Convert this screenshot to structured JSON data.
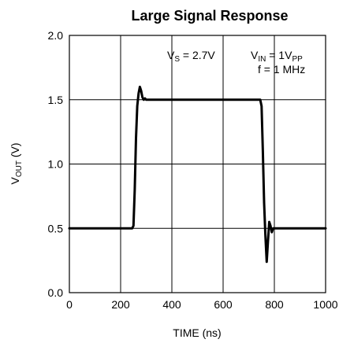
{
  "chart_data": {
    "type": "line",
    "title": "Large Signal Response",
    "xlabel": "TIME (ns)",
    "ylabel": {
      "main": "V",
      "sub": "OUT",
      "unit": " (V)"
    },
    "xlim": [
      0,
      1000
    ],
    "ylim": [
      0,
      2.0
    ],
    "x_ticks": [
      0,
      200,
      400,
      600,
      800,
      1000
    ],
    "y_ticks": [
      {
        "value": 0.0,
        "label": "0.0"
      },
      {
        "value": 0.5,
        "label": "0.5"
      },
      {
        "value": 1.0,
        "label": "1.0"
      },
      {
        "value": 1.5,
        "label": "1.5"
      },
      {
        "value": 2.0,
        "label": "2.0"
      }
    ],
    "grid": true,
    "annotations": {
      "vs": {
        "main": "V",
        "sub": "S",
        "rest": " = 2.7V"
      },
      "vin": {
        "main": "V",
        "sub": "IN",
        "rest": " = 1V",
        "sub2": "PP"
      },
      "freq": "f = 1 MHz"
    },
    "series": [
      {
        "color": "#000000",
        "points": [
          [
            0,
            0.5
          ],
          [
            150,
            0.5
          ],
          [
            245,
            0.5
          ],
          [
            250,
            0.52
          ],
          [
            255,
            0.8
          ],
          [
            260,
            1.2
          ],
          [
            265,
            1.45
          ],
          [
            270,
            1.55
          ],
          [
            275,
            1.6
          ],
          [
            280,
            1.57
          ],
          [
            285,
            1.52
          ],
          [
            290,
            1.5
          ],
          [
            295,
            1.51
          ],
          [
            300,
            1.5
          ],
          [
            400,
            1.5
          ],
          [
            500,
            1.5
          ],
          [
            600,
            1.5
          ],
          [
            700,
            1.5
          ],
          [
            745,
            1.5
          ],
          [
            750,
            1.45
          ],
          [
            755,
            1.1
          ],
          [
            760,
            0.7
          ],
          [
            765,
            0.45
          ],
          [
            770,
            0.24
          ],
          [
            775,
            0.4
          ],
          [
            780,
            0.55
          ],
          [
            785,
            0.52
          ],
          [
            790,
            0.47
          ],
          [
            795,
            0.5
          ],
          [
            800,
            0.5
          ],
          [
            900,
            0.5
          ],
          [
            1000,
            0.5
          ]
        ]
      }
    ]
  }
}
